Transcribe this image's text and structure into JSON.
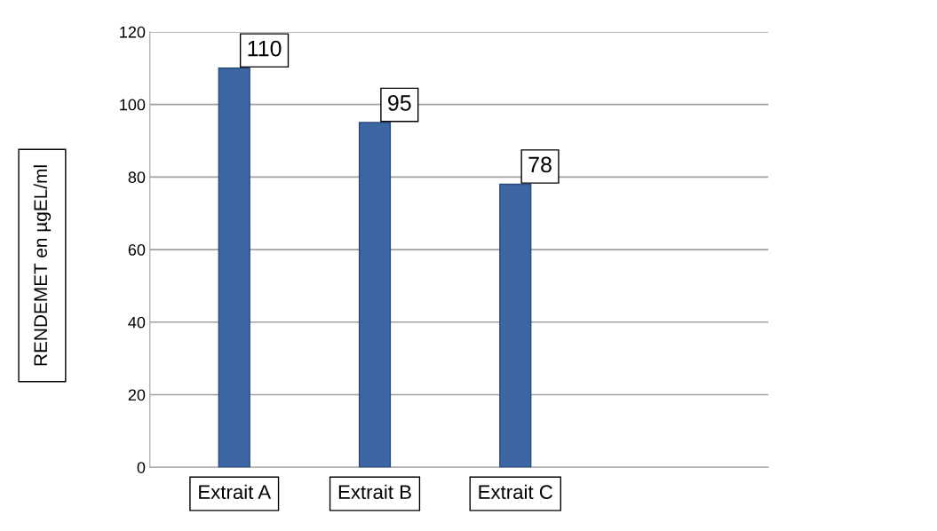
{
  "chart_data": {
    "type": "bar",
    "ylabel": "RENDEMET en µgEL/ml",
    "categories": [
      "Extrait A",
      "Extrait B",
      "Extrait C"
    ],
    "values": [
      110,
      95,
      78
    ],
    "color": "#3c66a4",
    "ylim": [
      0,
      120
    ],
    "yticks": [
      0,
      20,
      40,
      60,
      80,
      100,
      120
    ],
    "grid": "y",
    "data_labels": true
  }
}
